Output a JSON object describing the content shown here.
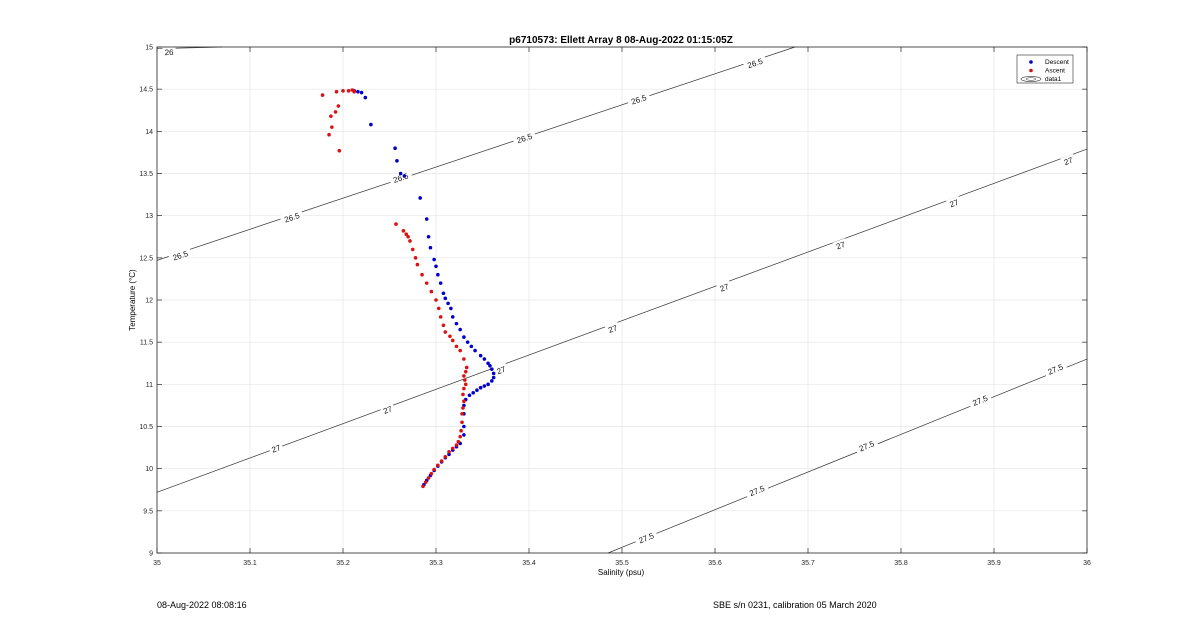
{
  "chart_data": {
    "type": "scatter",
    "title": "p6710573: Ellett Array 8 08-Aug-2022 01:15:05Z",
    "xlabel": "Salinity (psu)",
    "ylabel": "Temperature (°C)",
    "xlim": [
      35,
      36
    ],
    "ylim": [
      9,
      15
    ],
    "xticks": [
      35,
      35.1,
      35.2,
      35.3,
      35.4,
      35.5,
      35.6,
      35.7,
      35.8,
      35.9,
      36
    ],
    "xtick_labels": [
      "35",
      "35.1",
      "35.2",
      "35.3",
      "35.4",
      "35.5",
      "35.6",
      "35.7",
      "35.8",
      "35.9",
      "36"
    ],
    "yticks": [
      9,
      9.5,
      10,
      10.5,
      11,
      11.5,
      12,
      12.5,
      13,
      13.5,
      14,
      14.5,
      15
    ],
    "ytick_labels": [
      "9",
      "9.5",
      "10",
      "10.5",
      "11",
      "11.5",
      "12",
      "12.5",
      "13",
      "13.5",
      "14",
      "14.5",
      "15"
    ],
    "grid": true,
    "legend_position": "top-right",
    "contours": [
      {
        "label": "26",
        "line": [
          [
            35.0,
            14.98
          ],
          [
            35.07,
            15.0
          ]
        ],
        "label_points": [
          [
            35.013,
            14.94
          ]
        ]
      },
      {
        "label": "26.5",
        "line": [
          [
            35.0,
            12.47
          ],
          [
            35.686,
            15.0
          ]
        ],
        "label_points": [
          [
            35.025,
            12.53
          ],
          [
            35.145,
            12.98
          ],
          [
            35.262,
            13.45
          ],
          [
            35.395,
            13.92
          ],
          [
            35.518,
            14.38
          ],
          [
            35.643,
            14.81
          ]
        ]
      },
      {
        "label": "27",
        "line": [
          [
            35.0,
            9.72
          ],
          [
            36.0,
            13.79
          ]
        ],
        "label_points": [
          [
            35.128,
            10.24
          ],
          [
            35.248,
            10.7
          ],
          [
            35.37,
            11.17
          ],
          [
            35.49,
            11.66
          ],
          [
            35.61,
            12.15
          ],
          [
            35.735,
            12.65
          ],
          [
            35.857,
            13.15
          ],
          [
            35.98,
            13.65
          ]
        ]
      },
      {
        "label": "27.5",
        "line": [
          [
            35.485,
            9.0
          ],
          [
            36.0,
            11.3
          ]
        ],
        "label_points": [
          [
            35.526,
            9.18
          ],
          [
            35.645,
            9.74
          ],
          [
            35.763,
            10.27
          ],
          [
            35.885,
            10.81
          ],
          [
            35.966,
            11.18
          ]
        ]
      }
    ],
    "series": [
      {
        "name": "Descent",
        "color": "#0000cc",
        "points": [
          [
            35.212,
            14.48
          ],
          [
            35.216,
            14.47
          ],
          [
            35.22,
            14.46
          ],
          [
            35.224,
            14.4
          ],
          [
            35.23,
            14.08
          ],
          [
            35.256,
            13.8
          ],
          [
            35.258,
            13.65
          ],
          [
            35.262,
            13.5
          ],
          [
            35.266,
            13.47
          ],
          [
            35.283,
            13.21
          ],
          [
            35.29,
            12.96
          ],
          [
            35.292,
            12.75
          ],
          [
            35.294,
            12.62
          ],
          [
            35.298,
            12.48
          ],
          [
            35.3,
            12.4
          ],
          [
            35.302,
            12.3
          ],
          [
            35.305,
            12.2
          ],
          [
            35.308,
            12.08
          ],
          [
            35.31,
            12.02
          ],
          [
            35.313,
            11.96
          ],
          [
            35.316,
            11.9
          ],
          [
            35.318,
            11.8
          ],
          [
            35.322,
            11.72
          ],
          [
            35.326,
            11.65
          ],
          [
            35.33,
            11.56
          ],
          [
            35.334,
            11.5
          ],
          [
            35.338,
            11.45
          ],
          [
            35.342,
            11.4
          ],
          [
            35.348,
            11.34
          ],
          [
            35.352,
            11.3
          ],
          [
            35.356,
            11.25
          ],
          [
            35.358,
            11.22
          ],
          [
            35.36,
            11.18
          ],
          [
            35.362,
            11.13
          ],
          [
            35.362,
            11.08
          ],
          [
            35.36,
            11.04
          ],
          [
            35.356,
            11.0
          ],
          [
            35.352,
            10.98
          ],
          [
            35.348,
            10.96
          ],
          [
            35.344,
            10.93
          ],
          [
            35.34,
            10.9
          ],
          [
            35.336,
            10.87
          ],
          [
            35.332,
            10.82
          ],
          [
            35.33,
            10.75
          ],
          [
            35.33,
            10.65
          ],
          [
            35.33,
            10.5
          ],
          [
            35.33,
            10.4
          ],
          [
            35.326,
            10.3
          ],
          [
            35.322,
            10.26
          ],
          [
            35.318,
            10.22
          ],
          [
            35.314,
            10.17
          ],
          [
            35.31,
            10.13
          ],
          [
            35.306,
            10.08
          ],
          [
            35.302,
            10.03
          ],
          [
            35.298,
            9.98
          ],
          [
            35.294,
            9.92
          ],
          [
            35.29,
            9.86
          ],
          [
            35.287,
            9.81
          ]
        ]
      },
      {
        "name": "Ascent",
        "color": "#dd1111",
        "points": [
          [
            35.178,
            14.43
          ],
          [
            35.193,
            14.47
          ],
          [
            35.2,
            14.48
          ],
          [
            35.206,
            14.48
          ],
          [
            35.21,
            14.49
          ],
          [
            35.212,
            14.47
          ],
          [
            35.187,
            14.18
          ],
          [
            35.192,
            14.23
          ],
          [
            35.195,
            14.3
          ],
          [
            35.188,
            14.05
          ],
          [
            35.185,
            13.96
          ],
          [
            35.196,
            13.77
          ],
          [
            35.257,
            12.9
          ],
          [
            35.265,
            12.82
          ],
          [
            35.268,
            12.78
          ],
          [
            35.27,
            12.75
          ],
          [
            35.272,
            12.7
          ],
          [
            35.275,
            12.6
          ],
          [
            35.278,
            12.5
          ],
          [
            35.28,
            12.42
          ],
          [
            35.285,
            12.3
          ],
          [
            35.29,
            12.2
          ],
          [
            35.295,
            12.1
          ],
          [
            35.3,
            12.0
          ],
          [
            35.303,
            11.9
          ],
          [
            35.305,
            11.8
          ],
          [
            35.308,
            11.7
          ],
          [
            35.31,
            11.62
          ],
          [
            35.315,
            11.57
          ],
          [
            35.318,
            11.52
          ],
          [
            35.322,
            11.45
          ],
          [
            35.326,
            11.4
          ],
          [
            35.33,
            11.3
          ],
          [
            35.333,
            11.2
          ],
          [
            35.332,
            11.15
          ],
          [
            35.33,
            11.1
          ],
          [
            35.331,
            11.05
          ],
          [
            35.332,
            11.0
          ],
          [
            35.33,
            10.95
          ],
          [
            35.329,
            10.88
          ],
          [
            35.33,
            10.8
          ],
          [
            35.329,
            10.72
          ],
          [
            35.328,
            10.65
          ],
          [
            35.328,
            10.55
          ],
          [
            35.327,
            10.45
          ],
          [
            35.326,
            10.38
          ],
          [
            35.324,
            10.32
          ],
          [
            35.322,
            10.28
          ],
          [
            35.318,
            10.24
          ],
          [
            35.314,
            10.2
          ],
          [
            35.31,
            10.14
          ],
          [
            35.306,
            10.09
          ],
          [
            35.302,
            10.04
          ],
          [
            35.298,
            9.99
          ],
          [
            35.295,
            9.94
          ],
          [
            35.292,
            9.89
          ],
          [
            35.289,
            9.84
          ],
          [
            35.286,
            9.79
          ]
        ]
      }
    ],
    "legend": [
      "Descent",
      "Ascent",
      "data1"
    ]
  },
  "footer": {
    "date": "08-Aug-2022 08:08:16",
    "calibration": "SBE s/n 0231, calibration 05 March 2020"
  }
}
